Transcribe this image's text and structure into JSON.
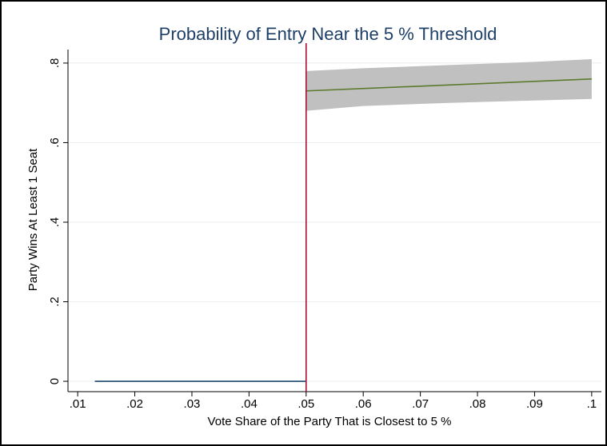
{
  "chart_data": {
    "type": "line",
    "title": "Probability of Entry Near the 5 % Threshold",
    "x_label": "Vote Share of the Party That is Closest to 5 %",
    "y_label": "Party Wins At Least 1 Seat",
    "xlim": [
      0.0083,
      0.1017
    ],
    "ylim": [
      -0.026,
      0.834
    ],
    "xticks": [
      {
        "value": 0.01,
        "label": ".01"
      },
      {
        "value": 0.02,
        "label": ".02"
      },
      {
        "value": 0.03,
        "label": ".03"
      },
      {
        "value": 0.04,
        "label": ".04"
      },
      {
        "value": 0.05,
        "label": ".05"
      },
      {
        "value": 0.06,
        "label": ".06"
      },
      {
        "value": 0.07,
        "label": ".07"
      },
      {
        "value": 0.08,
        "label": ".08"
      },
      {
        "value": 0.09,
        "label": ".09"
      },
      {
        "value": 0.1,
        "label": ".1"
      }
    ],
    "yticks": [
      0,
      {
        "value": 0.2,
        "label": ".2"
      },
      {
        "value": 0.4,
        "label": ".4"
      },
      {
        "value": 0.6,
        "label": ".6"
      },
      {
        "value": 0.8,
        "label": ".8"
      }
    ],
    "grid": true,
    "threshold": {
      "x": 0.05,
      "color": "#b0103a"
    },
    "band": {
      "color": "#c0c0c0",
      "x": [
        0.05,
        0.06,
        0.075,
        0.09,
        0.1
      ],
      "upper": [
        0.78,
        0.787,
        0.795,
        0.803,
        0.81
      ],
      "lower": [
        0.68,
        0.692,
        0.7,
        0.706,
        0.71
      ]
    },
    "series": [
      {
        "color": "#1a476f",
        "x": [
          0.013,
          0.05
        ],
        "values": [
          0,
          0
        ]
      },
      {
        "color": "#5a7a2e",
        "x": [
          0.05,
          0.075,
          0.1
        ],
        "values": [
          0.73,
          0.745,
          0.76
        ]
      }
    ]
  }
}
